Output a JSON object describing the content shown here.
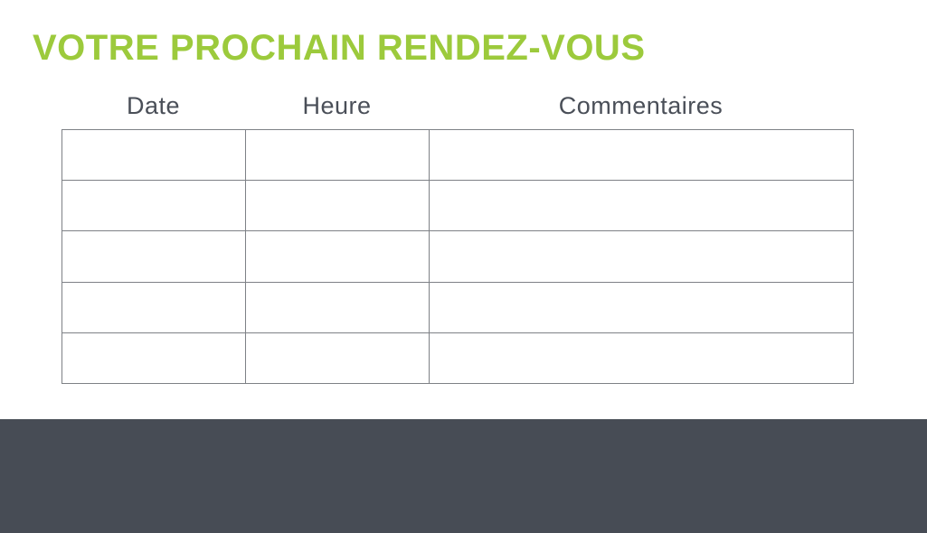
{
  "header": {
    "title": "VOTRE PROCHAIN RENDEZ-VOUS"
  },
  "table": {
    "headers": [
      "Date",
      "Heure",
      "Commentaires"
    ],
    "rows": [
      [
        "",
        "",
        ""
      ],
      [
        "",
        "",
        ""
      ],
      [
        "",
        "",
        ""
      ],
      [
        "",
        "",
        ""
      ],
      [
        "",
        "",
        ""
      ]
    ]
  },
  "colors": {
    "title_green": "#9CCA3C",
    "header_text": "#4A4F58",
    "table_border": "#7E8186",
    "footer_band": "#474C55"
  }
}
